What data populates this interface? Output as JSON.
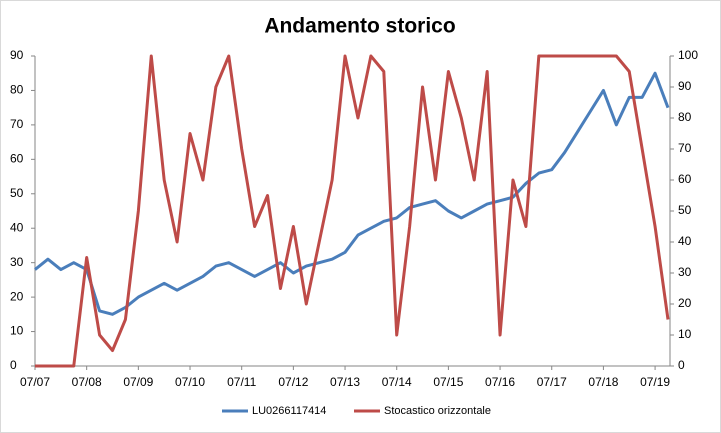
{
  "chart_data": {
    "type": "line",
    "title": "Andamento storico",
    "x": [
      "07/07",
      "10/07",
      "01/08",
      "04/08",
      "07/08",
      "10/08",
      "01/09",
      "04/09",
      "07/09",
      "10/09",
      "01/10",
      "04/10",
      "07/10",
      "10/10",
      "01/11",
      "04/11",
      "07/11",
      "10/11",
      "01/12",
      "04/12",
      "07/12",
      "10/12",
      "01/13",
      "04/13",
      "07/13",
      "10/13",
      "01/14",
      "04/14",
      "07/14",
      "10/14",
      "01/15",
      "04/15",
      "07/15",
      "10/15",
      "01/16",
      "04/16",
      "07/16",
      "10/16",
      "01/17",
      "04/17",
      "07/17",
      "10/17",
      "01/18",
      "04/18",
      "07/18",
      "10/18",
      "01/19",
      "04/19",
      "07/19",
      "10/19"
    ],
    "series": [
      {
        "name": "LU0266117414",
        "color": "#4a7ebb",
        "values": [
          28,
          31,
          28,
          30,
          28,
          16,
          15,
          17,
          20,
          22,
          24,
          22,
          24,
          26,
          29,
          30,
          28,
          26,
          28,
          30,
          27,
          29,
          30,
          31,
          33,
          38,
          40,
          42,
          43,
          46,
          47,
          48,
          45,
          43,
          45,
          47,
          48,
          49,
          53,
          56,
          57,
          62,
          68,
          74,
          80,
          70,
          78,
          78,
          85,
          75
        ]
      },
      {
        "name": "Stocastico orizzontale",
        "color": "#be4b48",
        "axis": "y2",
        "values": [
          0,
          0,
          0,
          0,
          35,
          10,
          5,
          15,
          50,
          100,
          60,
          40,
          75,
          60,
          90,
          100,
          70,
          45,
          55,
          25,
          45,
          20,
          40,
          60,
          100,
          80,
          100,
          95,
          10,
          45,
          90,
          60,
          95,
          80,
          60,
          95,
          10,
          60,
          45,
          100,
          100,
          100,
          100,
          100,
          100,
          100,
          95,
          70,
          45,
          15
        ]
      }
    ],
    "xticks": [
      "07/07",
      "07/08",
      "07/09",
      "07/10",
      "07/11",
      "07/12",
      "07/13",
      "07/14",
      "07/15",
      "07/16",
      "07/17",
      "07/18",
      "07/19"
    ],
    "ylim": [
      0,
      90
    ],
    "yticks": [
      0,
      10,
      20,
      30,
      40,
      50,
      60,
      70,
      80,
      90
    ],
    "y2lim": [
      0,
      100
    ],
    "y2ticks": [
      0,
      10,
      20,
      30,
      40,
      50,
      60,
      70,
      80,
      90,
      100
    ],
    "legend": "bottom"
  }
}
